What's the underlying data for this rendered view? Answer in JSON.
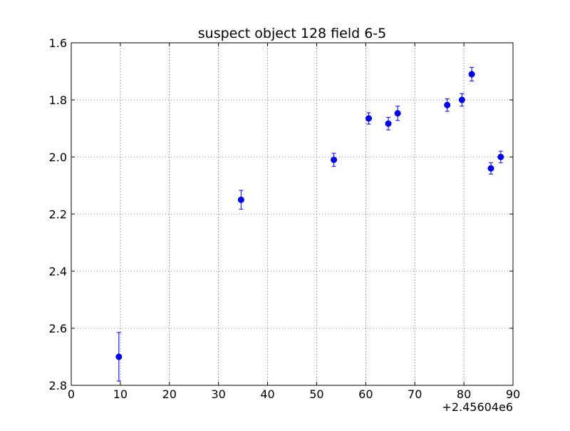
{
  "chart_data": {
    "type": "scatter",
    "title": "suspect object 128 field 6-5",
    "xlabel": "",
    "ylabel": "",
    "x_offset_label": "+2.45604e6",
    "xlim": [
      0,
      90
    ],
    "ylim": [
      1.6,
      2.8
    ],
    "y_inverted": true,
    "grid": true,
    "x_ticks": [
      0,
      10,
      20,
      30,
      40,
      50,
      60,
      70,
      80,
      90
    ],
    "x_tick_labels": [
      "0",
      "10",
      "20",
      "30",
      "40",
      "50",
      "60",
      "70",
      "80",
      "90"
    ],
    "y_ticks": [
      1.6,
      1.8,
      2.0,
      2.2,
      2.4,
      2.6,
      2.8
    ],
    "y_tick_labels": [
      "1.6",
      "1.8",
      "2.0",
      "2.2",
      "2.4",
      "2.6",
      "2.8"
    ],
    "marker_color": "#0000ff",
    "points": [
      {
        "x": 9.7,
        "y": 2.7,
        "yerr": 0.085
      },
      {
        "x": 34.6,
        "y": 2.15,
        "yerr": 0.033
      },
      {
        "x": 53.5,
        "y": 2.01,
        "yerr": 0.023
      },
      {
        "x": 60.6,
        "y": 1.865,
        "yerr": 0.02
      },
      {
        "x": 64.6,
        "y": 1.883,
        "yerr": 0.022
      },
      {
        "x": 66.5,
        "y": 1.847,
        "yerr": 0.025
      },
      {
        "x": 76.6,
        "y": 1.818,
        "yerr": 0.022
      },
      {
        "x": 79.6,
        "y": 1.8,
        "yerr": 0.022
      },
      {
        "x": 81.6,
        "y": 1.71,
        "yerr": 0.024
      },
      {
        "x": 85.5,
        "y": 2.04,
        "yerr": 0.02
      },
      {
        "x": 87.5,
        "y": 2.0,
        "yerr": 0.02
      }
    ]
  }
}
